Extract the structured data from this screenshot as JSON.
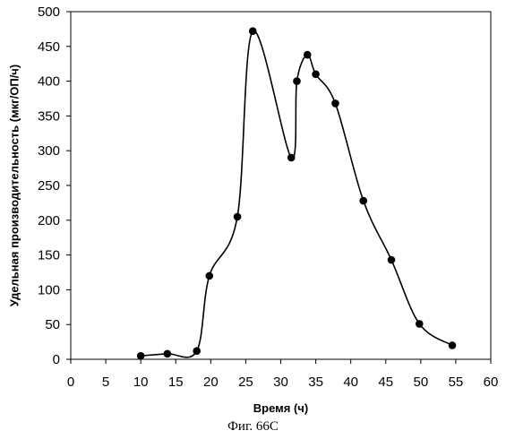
{
  "chart_data": {
    "type": "line",
    "title": "",
    "xlabel": "Время (ч)",
    "ylabel": "Удельная производительность (мкг/ОП/ч)",
    "xlim": [
      0,
      60
    ],
    "ylim": [
      0,
      500
    ],
    "xticks": [
      "0",
      "5",
      "10",
      "15",
      "20",
      "25",
      "30",
      "35",
      "40",
      "45",
      "50",
      "55",
      "60"
    ],
    "yticks": [
      "0",
      "50",
      "100",
      "150",
      "200",
      "250",
      "300",
      "350",
      "400",
      "450",
      "500"
    ],
    "grid": false,
    "legend": "none",
    "smooth": true,
    "series": [
      {
        "color": "#000000",
        "marker": "circle",
        "x": [
          10,
          13.8,
          18,
          19.8,
          23.8,
          26,
          31.5,
          32.3,
          33.8,
          35,
          37.8,
          41.8,
          45.8,
          49.8,
          54.5
        ],
        "y": [
          5,
          8,
          12,
          120,
          205,
          472,
          290,
          400,
          438,
          410,
          368,
          228,
          143,
          51,
          20
        ]
      }
    ]
  },
  "caption": "Фиг. 66С"
}
